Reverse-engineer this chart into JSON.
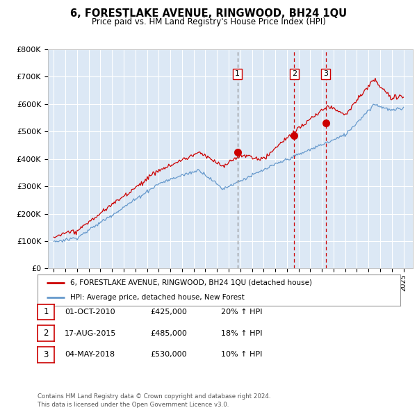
{
  "title": "6, FORESTLAKE AVENUE, RINGWOOD, BH24 1QU",
  "subtitle": "Price paid vs. HM Land Registry's House Price Index (HPI)",
  "background_color": "#ffffff",
  "plot_bg_color": "#dce8f5",
  "grid_color": "#ffffff",
  "ylim": [
    0,
    800000
  ],
  "yticks": [
    0,
    100000,
    200000,
    300000,
    400000,
    500000,
    600000,
    700000,
    800000
  ],
  "ytick_labels": [
    "£0",
    "£100K",
    "£200K",
    "£300K",
    "£400K",
    "£500K",
    "£600K",
    "£700K",
    "£800K"
  ],
  "xlim_start": 1994.5,
  "xlim_end": 2025.8,
  "sale_dates": [
    2010.75,
    2015.62,
    2018.33
  ],
  "sale_prices": [
    425000,
    485000,
    530000
  ],
  "sale_labels": [
    "1",
    "2",
    "3"
  ],
  "sale_line_styles": [
    "--",
    "--",
    "--"
  ],
  "sale_line_colors": [
    "#888888",
    "#cc0000",
    "#cc0000"
  ],
  "sale_info": [
    {
      "label": "1",
      "date": "01-OCT-2010",
      "price": "£425,000",
      "hpi": "20% ↑ HPI"
    },
    {
      "label": "2",
      "date": "17-AUG-2015",
      "price": "£485,000",
      "hpi": "18% ↑ HPI"
    },
    {
      "label": "3",
      "date": "04-MAY-2018",
      "price": "£530,000",
      "hpi": "10% ↑ HPI"
    }
  ],
  "red_line_color": "#cc0000",
  "blue_line_color": "#6699cc",
  "legend_label_red": "6, FORESTLAKE AVENUE, RINGWOOD, BH24 1QU (detached house)",
  "legend_label_blue": "HPI: Average price, detached house, New Forest",
  "footer": "Contains HM Land Registry data © Crown copyright and database right 2024.\nThis data is licensed under the Open Government Licence v3.0."
}
